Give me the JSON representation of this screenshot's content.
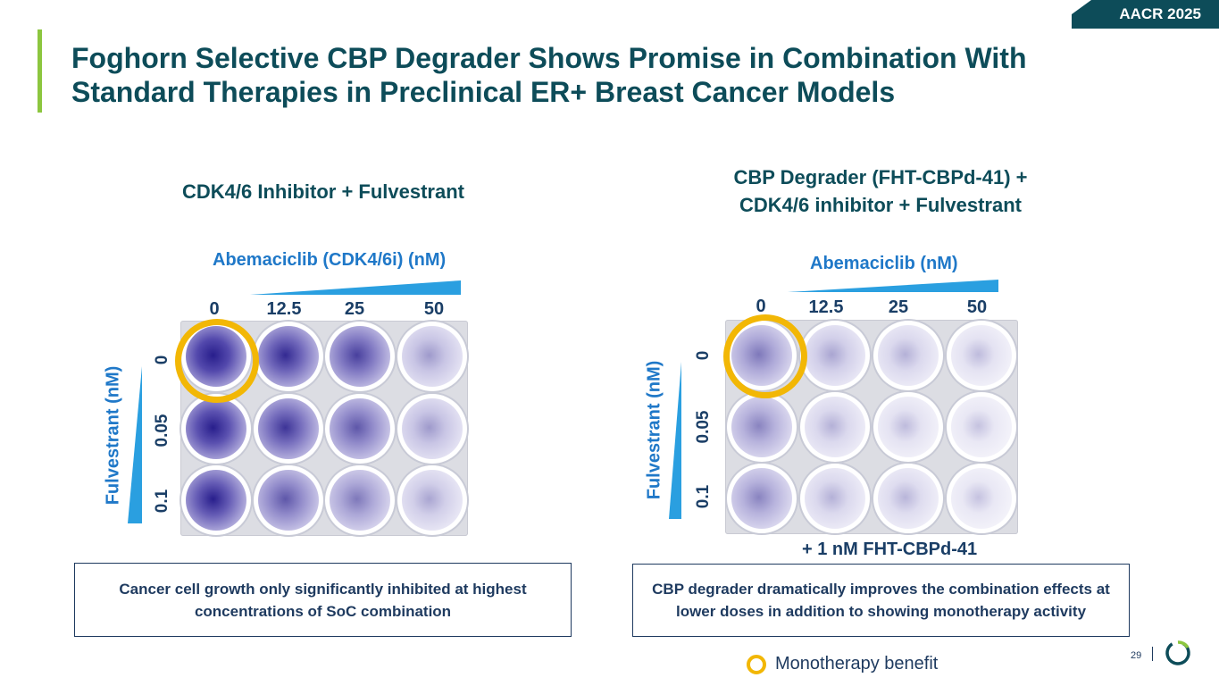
{
  "badge": "AACR 2025",
  "title_line1": "Foghorn Selective CBP Degrader Shows Promise in Combination With",
  "title_line2": "Standard Therapies in Preclinical ER+ Breast Cancer Models",
  "left": {
    "heading": "CDK4/6 Inhibitor + Fulvestrant",
    "x_title": "Abemaciclib (CDK4/6i) (nM)",
    "x_ticks": [
      "0",
      "12.5",
      "25",
      "50"
    ],
    "y_title": "Fulvestrant (nM)",
    "y_ticks": [
      "0",
      "0.05",
      "0.1"
    ],
    "note": "Cancer cell growth only significantly inhibited at highest concentrations of SoC combination",
    "well_stain_level": [
      [
        0.95,
        0.8,
        0.7,
        0.3
      ],
      [
        0.9,
        0.75,
        0.6,
        0.3
      ],
      [
        0.85,
        0.6,
        0.45,
        0.25
      ]
    ]
  },
  "right": {
    "heading_line1": "CBP Degrader (FHT-CBPd-41) +",
    "heading_line2": "CDK4/6 inhibitor + Fulvestrant",
    "x_title": "Abemaciclib (nM)",
    "x_ticks": [
      "0",
      "12.5",
      "25",
      "50"
    ],
    "y_title": "Fulvestrant (nM)",
    "y_ticks": [
      "0",
      "0.05",
      "0.1"
    ],
    "combo_label": "+ 1 nM FHT-CBPd-41",
    "note": "CBP degrader dramatically improves the combination effects at lower doses in addition to showing monotherapy activity",
    "well_stain_level": [
      [
        0.45,
        0.25,
        0.2,
        0.15
      ],
      [
        0.4,
        0.2,
        0.15,
        0.12
      ],
      [
        0.4,
        0.2,
        0.18,
        0.12
      ]
    ]
  },
  "legend": "Monotherapy benefit",
  "page_number": "29",
  "colors": {
    "teal": "#0d4c59",
    "green_accent": "#8cc63f",
    "axis_blue": "#1f78c8",
    "highlight_ring": "#f2b705",
    "stain": "#4a3fa8"
  }
}
